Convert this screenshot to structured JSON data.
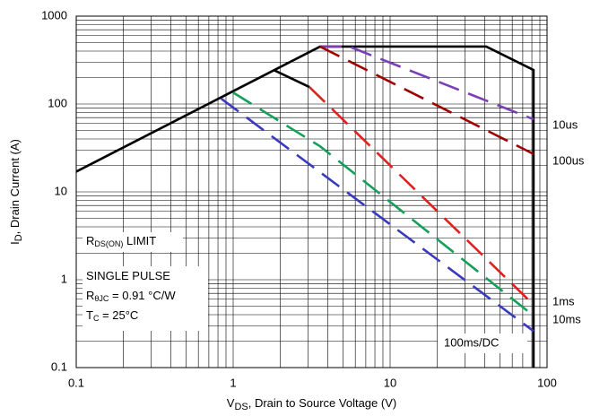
{
  "chart_data": {
    "type": "line",
    "xlabel": {
      "text": "V",
      "sub": "DS",
      "rest": ", Drain to Source Voltage (V)"
    },
    "ylabel": {
      "text": "I",
      "sub": "D",
      "rest": ", Drain Current (A)"
    },
    "xscale": "log",
    "yscale": "log",
    "grid": true,
    "minor_grid": true,
    "xlim": [
      0.1,
      100
    ],
    "ylim": [
      0.1,
      1000
    ],
    "xticks": [
      0.1,
      1,
      10,
      100
    ],
    "yticks": [
      0.1,
      1,
      10,
      100,
      1000
    ],
    "series": [
      {
        "color": "#000000",
        "dashed": false,
        "x": [
          0.1,
          3.58,
          41,
          82,
          82
        ],
        "y": [
          17,
          450,
          450,
          244,
          0.1
        ]
      },
      {
        "color": "#000000",
        "dashed": false,
        "x": [
          1.81,
          3.06
        ],
        "y": [
          244,
          156
        ]
      },
      {
        "name": "10us",
        "color": "#7b3fb5",
        "dashed": true,
        "x": [
          3.58,
          5.5,
          82
        ],
        "y": [
          450,
          450,
          67
        ]
      },
      {
        "name": "100us",
        "color": "#a00000",
        "dashed": true,
        "x": [
          3.58,
          82
        ],
        "y": [
          450,
          27
        ]
      },
      {
        "name": "1ms",
        "color": "#e21f1f",
        "dashed": true,
        "x": [
          3.06,
          82
        ],
        "y": [
          156,
          0.52
        ]
      },
      {
        "name": "10ms",
        "color": "#14a05a",
        "dashed": true,
        "x": [
          1.0,
          3.58,
          82
        ],
        "y": [
          135,
          33,
          0.39
        ]
      },
      {
        "name": "100ms/DC",
        "color": "#3a3ac0",
        "dashed": true,
        "x": [
          0.84,
          82
        ],
        "y": [
          115,
          0.26
        ]
      }
    ],
    "annotations": [
      {
        "text": "R",
        "sub": "DS(ON)",
        "rest": " LIMIT"
      },
      {
        "text": "SINGLE PULSE"
      },
      {
        "text": "R",
        "sub": "θJC",
        "rest": " = 0.91 °C/W"
      },
      {
        "text": "T",
        "sub": "C",
        "rest": " = 25°C"
      }
    ]
  }
}
